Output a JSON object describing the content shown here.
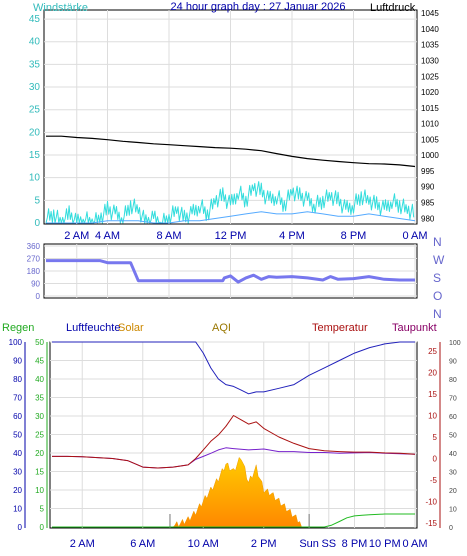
{
  "title": "24 hour graph day : 27 Januar 2026",
  "chart_data": [
    {
      "type": "line",
      "left_label": "Windstärke",
      "right_label": "Luftdruck",
      "x_ticks": [
        "2 AM",
        "4 AM",
        "8 AM",
        "12 PM",
        "4 PM",
        "8 PM",
        "0 AM"
      ],
      "left_axis": {
        "ticks": [
          "0",
          "5",
          "10",
          "15",
          "20",
          "25",
          "30",
          "35",
          "40",
          "45"
        ],
        "ylim": [
          0,
          47
        ]
      },
      "right_axis": {
        "ticks": [
          "980",
          "985",
          "990",
          "995",
          "1000",
          "1005",
          "1010",
          "1015",
          "1020",
          "1025",
          "1030",
          "1035",
          "1040",
          "1045"
        ],
        "ylim": [
          978.5,
          1046
        ]
      },
      "pressure": {
        "color": "#000000",
        "x_hours": [
          0,
          1,
          2,
          3,
          4,
          5,
          6,
          7,
          8,
          9,
          10,
          11,
          12,
          13,
          14,
          15,
          16,
          17,
          18,
          19,
          20,
          21,
          22,
          23,
          24
        ],
        "values": [
          1006,
          1006,
          1005.6,
          1005.3,
          1004.9,
          1004.4,
          1004,
          1003.6,
          1003.3,
          1003,
          1002.7,
          1002.4,
          1002.2,
          1001.9,
          1001.4,
          1000.5,
          999.6,
          998.9,
          998.4,
          998,
          997.6,
          997.3,
          997.2,
          996.9,
          996.4
        ]
      },
      "wind": {
        "color": "#33dddd",
        "x_hours": [
          0,
          0.5,
          1,
          1.5,
          2,
          2.5,
          3,
          3.5,
          4,
          4.5,
          5,
          5.5,
          6,
          6.5,
          7,
          7.5,
          8,
          8.5,
          9,
          9.5,
          10,
          10.5,
          11,
          11.5,
          12,
          12.5,
          13,
          13.5,
          14,
          14.5,
          15,
          15.5,
          16,
          16.5,
          17,
          17.5,
          18,
          18.5,
          19,
          19.5,
          20,
          20.5,
          21,
          21.5,
          22,
          22.5,
          23,
          23.5,
          24
        ],
        "values": [
          1,
          2,
          0,
          2,
          0,
          1,
          0,
          1,
          3,
          2,
          1,
          4,
          3,
          0,
          1,
          0,
          1,
          3,
          1,
          2,
          4,
          2,
          5,
          6,
          4,
          7,
          5,
          8,
          7,
          5,
          6,
          4,
          7,
          6,
          5,
          4,
          5,
          6,
          5,
          3,
          4,
          6,
          5,
          4,
          3,
          5,
          4,
          3,
          2
        ]
      },
      "gust": {
        "color": "#55aaff",
        "x_hours": [
          0,
          1,
          2,
          3,
          4,
          5,
          6,
          7,
          8,
          9,
          10,
          11,
          12,
          13,
          14,
          15,
          16,
          17,
          18,
          19,
          20,
          21,
          22,
          23,
          24
        ],
        "values": [
          0,
          0,
          0,
          0,
          0.5,
          0.5,
          0.5,
          0,
          0,
          0.5,
          0.5,
          1,
          1.5,
          2,
          2.5,
          2,
          2,
          2.5,
          2,
          1.5,
          1.5,
          2,
          1.5,
          1,
          0.5
        ]
      }
    },
    {
      "type": "line",
      "left_axis": {
        "ticks": [
          "0",
          "90",
          "180",
          "270",
          "360"
        ],
        "ylim": [
          0,
          360
        ]
      },
      "right_axis": {
        "ticks": [
          "N",
          "W",
          "S",
          "O",
          "N"
        ]
      },
      "direction": {
        "color": "#7777ee",
        "x_hours": [
          0,
          3.5,
          4,
          5.5,
          6,
          7.5,
          8,
          11.5,
          11.6,
          12,
          12.5,
          13,
          13.5,
          14,
          14.5,
          15,
          16,
          17,
          18,
          18.5,
          19,
          20,
          21,
          22,
          23,
          24
        ],
        "values": [
          255,
          255,
          240,
          240,
          110,
          110,
          110,
          110,
          130,
          145,
          100,
          130,
          150,
          120,
          140,
          135,
          140,
          130,
          115,
          140,
          120,
          125,
          140,
          120,
          115,
          115
        ]
      }
    },
    {
      "type": "line",
      "top_labels": {
        "regen": "Regen",
        "feuchte": "Luftfeuchte",
        "solar": "Solar",
        "aqi": "AQI",
        "temperatur": "Temperatur",
        "taupunkt": "Taupunkt"
      },
      "x_ticks": [
        "2 AM",
        "6 AM",
        "10 AM",
        "2 PM",
        "Sun",
        "SS",
        "8 PM",
        "10 PM",
        "0 AM"
      ],
      "regen_axis": {
        "ticks": [
          "0",
          "10",
          "20",
          "30",
          "40",
          "50",
          "60",
          "70",
          "80",
          "90",
          "100"
        ],
        "ylim": [
          0,
          100
        ]
      },
      "solar_axis": {
        "ticks": [
          "0",
          "5",
          "10",
          "15",
          "20",
          "25",
          "30",
          "35",
          "40",
          "45",
          "50"
        ],
        "ylim": [
          0,
          50
        ]
      },
      "temp_axis": {
        "ticks": [
          "-15",
          "-10",
          "-5",
          "0",
          "5",
          "10",
          "15",
          "20",
          "25"
        ],
        "ylim": [
          -15,
          25
        ]
      },
      "taupunkt_axis": {
        "ticks": [
          "0",
          "10",
          "20",
          "30",
          "40",
          "50",
          "60",
          "70",
          "80",
          "90",
          "100"
        ],
        "ylim": [
          0,
          100
        ]
      },
      "humidity": {
        "color": "#2222bb",
        "x_hours": [
          0,
          1,
          2,
          3,
          4,
          5,
          6,
          7,
          8,
          9,
          9.5,
          10,
          10.5,
          11,
          11.5,
          12,
          12.5,
          13,
          13.5,
          14,
          15,
          16,
          17,
          18,
          19,
          20,
          21,
          22,
          23,
          24
        ],
        "values": [
          100,
          100,
          100,
          100,
          100,
          100,
          100,
          100,
          100,
          100,
          100,
          94,
          86,
          80,
          77,
          76,
          74,
          72,
          73,
          73,
          75,
          77,
          82,
          86,
          90,
          94,
          97,
          99,
          100,
          100
        ]
      },
      "temperature": {
        "color": "#aa1111",
        "x_hours": [
          0,
          1,
          2,
          3,
          4,
          5,
          6,
          7,
          8,
          9,
          9.5,
          10,
          10.5,
          11,
          11.5,
          12,
          12.5,
          13,
          13.5,
          14,
          15,
          16,
          17,
          18,
          19,
          20,
          21,
          22,
          23,
          24
        ],
        "values": [
          0.5,
          0.5,
          0.4,
          0.2,
          0,
          -0.5,
          -2,
          -2.2,
          -2,
          -1.5,
          0,
          2,
          4,
          5.5,
          7.5,
          10,
          9,
          8,
          8.5,
          7,
          5,
          3.5,
          2.3,
          1.8,
          1.6,
          1.5,
          1.5,
          1.3,
          1.2,
          1
        ]
      },
      "dewpoint": {
        "color": "#7722cc",
        "x_hours": [
          0,
          1,
          2,
          3,
          4,
          5,
          6,
          7,
          8,
          9,
          9.5,
          10,
          10.5,
          11,
          11.5,
          12,
          13,
          14,
          15,
          16,
          17,
          18,
          19,
          20,
          21,
          22,
          23,
          24
        ],
        "values": [
          0.5,
          0.5,
          0.4,
          0.2,
          0,
          -0.5,
          -2,
          -2.2,
          -2,
          -1.5,
          -0.2,
          0.5,
          1.2,
          2,
          2.5,
          2.3,
          2,
          2.2,
          1.6,
          1.6,
          1.4,
          1.4,
          1.2,
          1.3,
          1.4,
          1.2,
          1.1,
          1
        ]
      },
      "solar": {
        "color": "#ffaa00",
        "x_hours": [
          8,
          8.5,
          9,
          9.5,
          10,
          10.5,
          11,
          11.5,
          12,
          12.5,
          13,
          13.5,
          14,
          14.5,
          15,
          15.5,
          16,
          16.5
        ],
        "values": [
          0.3,
          1,
          2,
          4,
          7,
          10,
          13,
          17,
          15,
          19,
          12,
          16,
          10,
          9,
          7,
          5,
          3,
          1
        ]
      },
      "rain_total": {
        "color": "#22bb22",
        "x_hours": [
          0,
          18,
          18.5,
          19,
          19.5,
          20,
          20.5,
          21,
          21.5,
          22,
          23,
          24
        ],
        "values": [
          0,
          0,
          0.5,
          1.5,
          2.5,
          3,
          3.2,
          3.3,
          3.4,
          3.5,
          3.5,
          3.5
        ]
      }
    }
  ]
}
